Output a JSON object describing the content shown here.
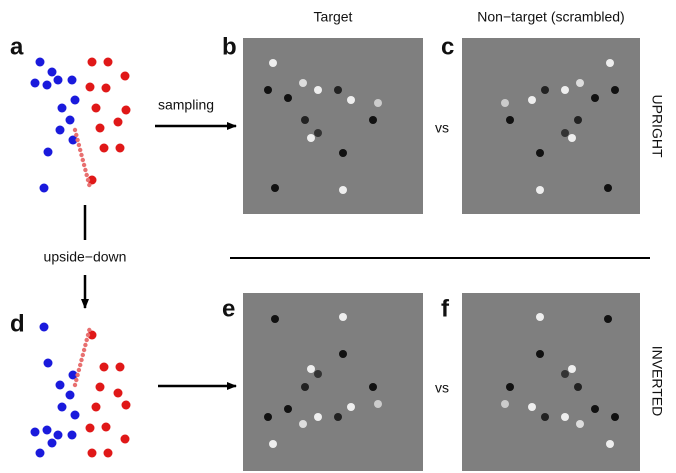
{
  "header": {
    "col_1": "Target",
    "col_2": "Non−target (scrambled)"
  },
  "panels": {
    "a": "a",
    "b": "b",
    "c": "c",
    "d": "d",
    "e": "e",
    "f": "f"
  },
  "arrows": {
    "sampling": "sampling",
    "upside_down": "upside−down"
  },
  "vs": [
    "vs",
    "vs"
  ],
  "rows": {
    "upright": "UPRIGHT",
    "inverted": "INVERTED"
  }
}
